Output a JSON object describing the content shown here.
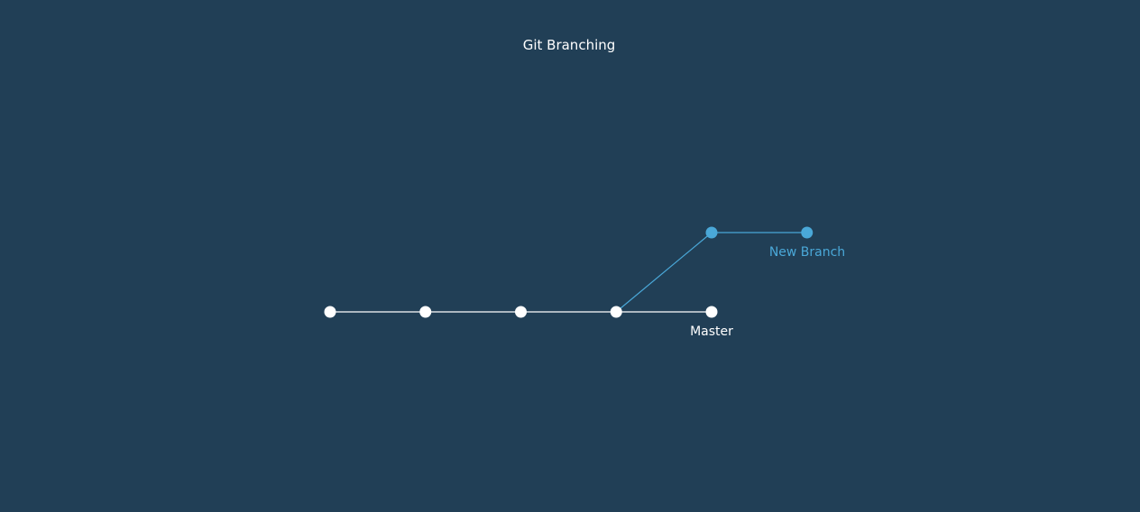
{
  "title": "Git Branching",
  "colors": {
    "background": "#213F56",
    "master": "#FFFFFF",
    "branch": "#4AA8D8",
    "title": "#FFFFFF"
  },
  "branches": [
    {
      "id": "master",
      "label": "Master",
      "commit_count": 5
    },
    {
      "id": "new-branch",
      "label": "New Branch",
      "forks_from_commit": 4,
      "commit_count": 2
    }
  ]
}
